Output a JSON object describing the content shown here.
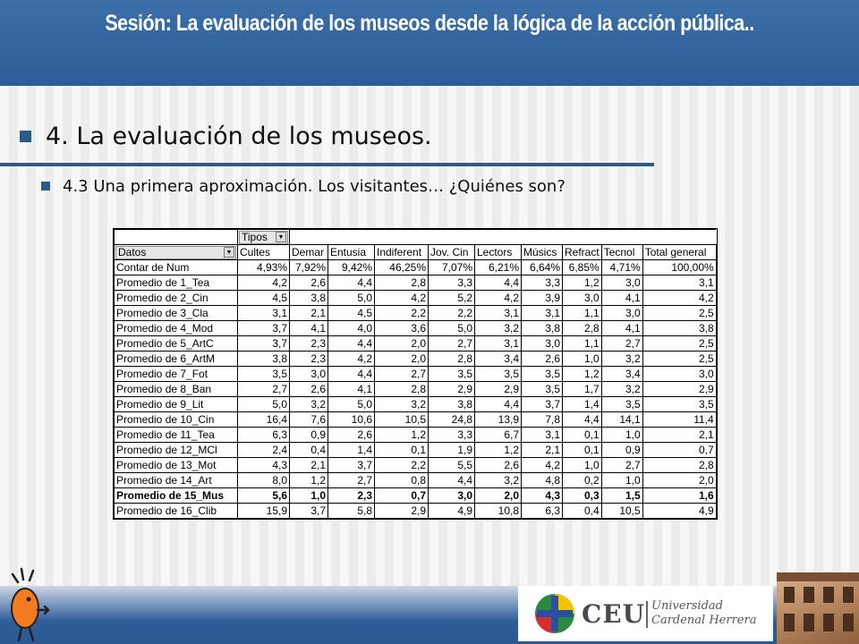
{
  "header": {
    "title": "Sesión:  La evaluación de los museos desde la lógica de la acción pública.."
  },
  "bullets": {
    "level1": "4. La evaluación de los museos.",
    "level2": "4.3 Una primera aproximación. Los visitantes… ¿Quiénes son?"
  },
  "pivot": {
    "page_field": "Tipos",
    "row_field": "Datos",
    "columns": [
      "Cultes",
      "Demar",
      "Entusia",
      "Indiferent",
      "Jov. Cin",
      "Lectors",
      "Músics",
      "Refract",
      "Tecnol",
      "Total general"
    ],
    "rows": [
      {
        "label": "Contar de Num",
        "values": [
          "4,93%",
          "7,92%",
          "9,42%",
          "46,25%",
          "7,07%",
          "6,21%",
          "6,64%",
          "6,85%",
          "4,71%",
          "100,00%"
        ]
      },
      {
        "label": "Promedio de 1_Tea",
        "values": [
          "4,2",
          "2,6",
          "4,4",
          "2,8",
          "3,3",
          "4,4",
          "3,3",
          "1,2",
          "3,0",
          "3,1"
        ]
      },
      {
        "label": "Promedio de 2_Cin",
        "values": [
          "4,5",
          "3,8",
          "5,0",
          "4,2",
          "5,2",
          "4,2",
          "3,9",
          "3,0",
          "4,1",
          "4,2"
        ]
      },
      {
        "label": "Promedio de 3_Cla",
        "values": [
          "3,1",
          "2,1",
          "4,5",
          "2,2",
          "2,2",
          "3,1",
          "3,1",
          "1,1",
          "3,0",
          "2,5"
        ]
      },
      {
        "label": "Promedio de 4_Mod",
        "values": [
          "3,7",
          "4,1",
          "4,0",
          "3,6",
          "5,0",
          "3,2",
          "3,8",
          "2,8",
          "4,1",
          "3,8"
        ]
      },
      {
        "label": "Promedio de 5_ArtC",
        "values": [
          "3,7",
          "2,3",
          "4,4",
          "2,0",
          "2,7",
          "3,1",
          "3,0",
          "1,1",
          "2,7",
          "2,5"
        ]
      },
      {
        "label": "Promedio de 6_ArtM",
        "values": [
          "3,8",
          "2,3",
          "4,2",
          "2,0",
          "2,8",
          "3,4",
          "2,6",
          "1,0",
          "3,2",
          "2,5"
        ]
      },
      {
        "label": "Promedio de 7_Fot",
        "values": [
          "3,5",
          "3,0",
          "4,4",
          "2,7",
          "3,5",
          "3,5",
          "3,5",
          "1,2",
          "3,4",
          "3,0"
        ]
      },
      {
        "label": "Promedio de 8_Ban",
        "values": [
          "2,7",
          "2,6",
          "4,1",
          "2,8",
          "2,9",
          "2,9",
          "3,5",
          "1,7",
          "3,2",
          "2,9"
        ]
      },
      {
        "label": "Promedio de 9_Lit",
        "values": [
          "5,0",
          "3,2",
          "5,0",
          "3,2",
          "3,8",
          "4,4",
          "3,7",
          "1,4",
          "3,5",
          "3,5"
        ]
      },
      {
        "label": "Promedio de 10_Cin",
        "values": [
          "16,4",
          "7,6",
          "10,6",
          "10,5",
          "24,8",
          "13,9",
          "7,8",
          "4,4",
          "14,1",
          "11,4"
        ]
      },
      {
        "label": "Promedio de 11_Tea",
        "values": [
          "6,3",
          "0,9",
          "2,6",
          "1,2",
          "3,3",
          "6,7",
          "3,1",
          "0,1",
          "1,0",
          "2,1"
        ]
      },
      {
        "label": "Promedio de 12_MCl",
        "values": [
          "2,4",
          "0,4",
          "1,4",
          "0,1",
          "1,9",
          "1,2",
          "2,1",
          "0,1",
          "0,9",
          "0,7"
        ]
      },
      {
        "label": "Promedio de 13_Mot",
        "values": [
          "4,3",
          "2,1",
          "3,7",
          "2,2",
          "5,5",
          "2,6",
          "4,2",
          "1,0",
          "2,7",
          "2,8"
        ]
      },
      {
        "label": "Promedio de 14_Art",
        "values": [
          "8,0",
          "1,2",
          "2,7",
          "0,8",
          "4,4",
          "3,2",
          "4,8",
          "0,2",
          "1,0",
          "2,0"
        ]
      },
      {
        "label": "Promedio de 15_Mus",
        "values": [
          "5,6",
          "1,0",
          "2,3",
          "0,7",
          "3,0",
          "2,0",
          "4,3",
          "0,3",
          "1,5",
          "1,6"
        ],
        "bold": true
      },
      {
        "label": "Promedio de 16_Clib",
        "values": [
          "15,9",
          "3,7",
          "5,8",
          "2,9",
          "4,9",
          "10,8",
          "6,3",
          "0,4",
          "10,5",
          "4,9"
        ]
      }
    ]
  },
  "logo": {
    "brand": "CEU",
    "university_line1": "Universidad",
    "university_line2": "Cardenal Herrera"
  }
}
